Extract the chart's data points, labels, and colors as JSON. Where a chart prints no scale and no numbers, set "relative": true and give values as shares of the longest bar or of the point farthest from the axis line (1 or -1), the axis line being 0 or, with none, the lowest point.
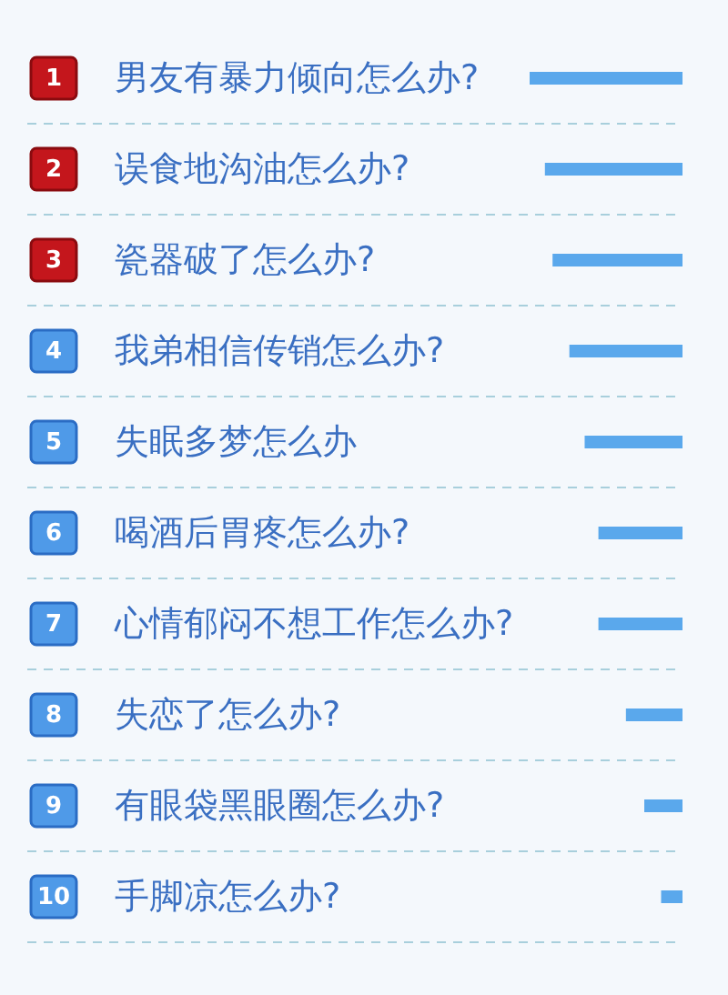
{
  "chart_data": {
    "type": "bar",
    "orientation": "horizontal",
    "relative": true,
    "categories": [
      "男友有暴力倾向怎么办?",
      "误食地沟油怎么办?",
      "瓷器破了怎么办?",
      "我弟相信传销怎么办?",
      "失眠多梦怎么办",
      "喝酒后胃疼怎么办?",
      "心情郁闷不想工作怎么办?",
      "失恋了怎么办?",
      "有眼袋黑眼圈怎么办?",
      "手脚凉怎么办?"
    ],
    "values": [
      1,
      0.9,
      0.85,
      0.74,
      0.64,
      0.55,
      0.55,
      0.37,
      0.25,
      0.14
    ],
    "color": "#5aa8ec",
    "grid": true,
    "tick_labels": "y",
    "annotations": [
      "1",
      "2",
      "3",
      "4",
      "5",
      "6",
      "7",
      "8",
      "9",
      "10"
    ]
  }
}
